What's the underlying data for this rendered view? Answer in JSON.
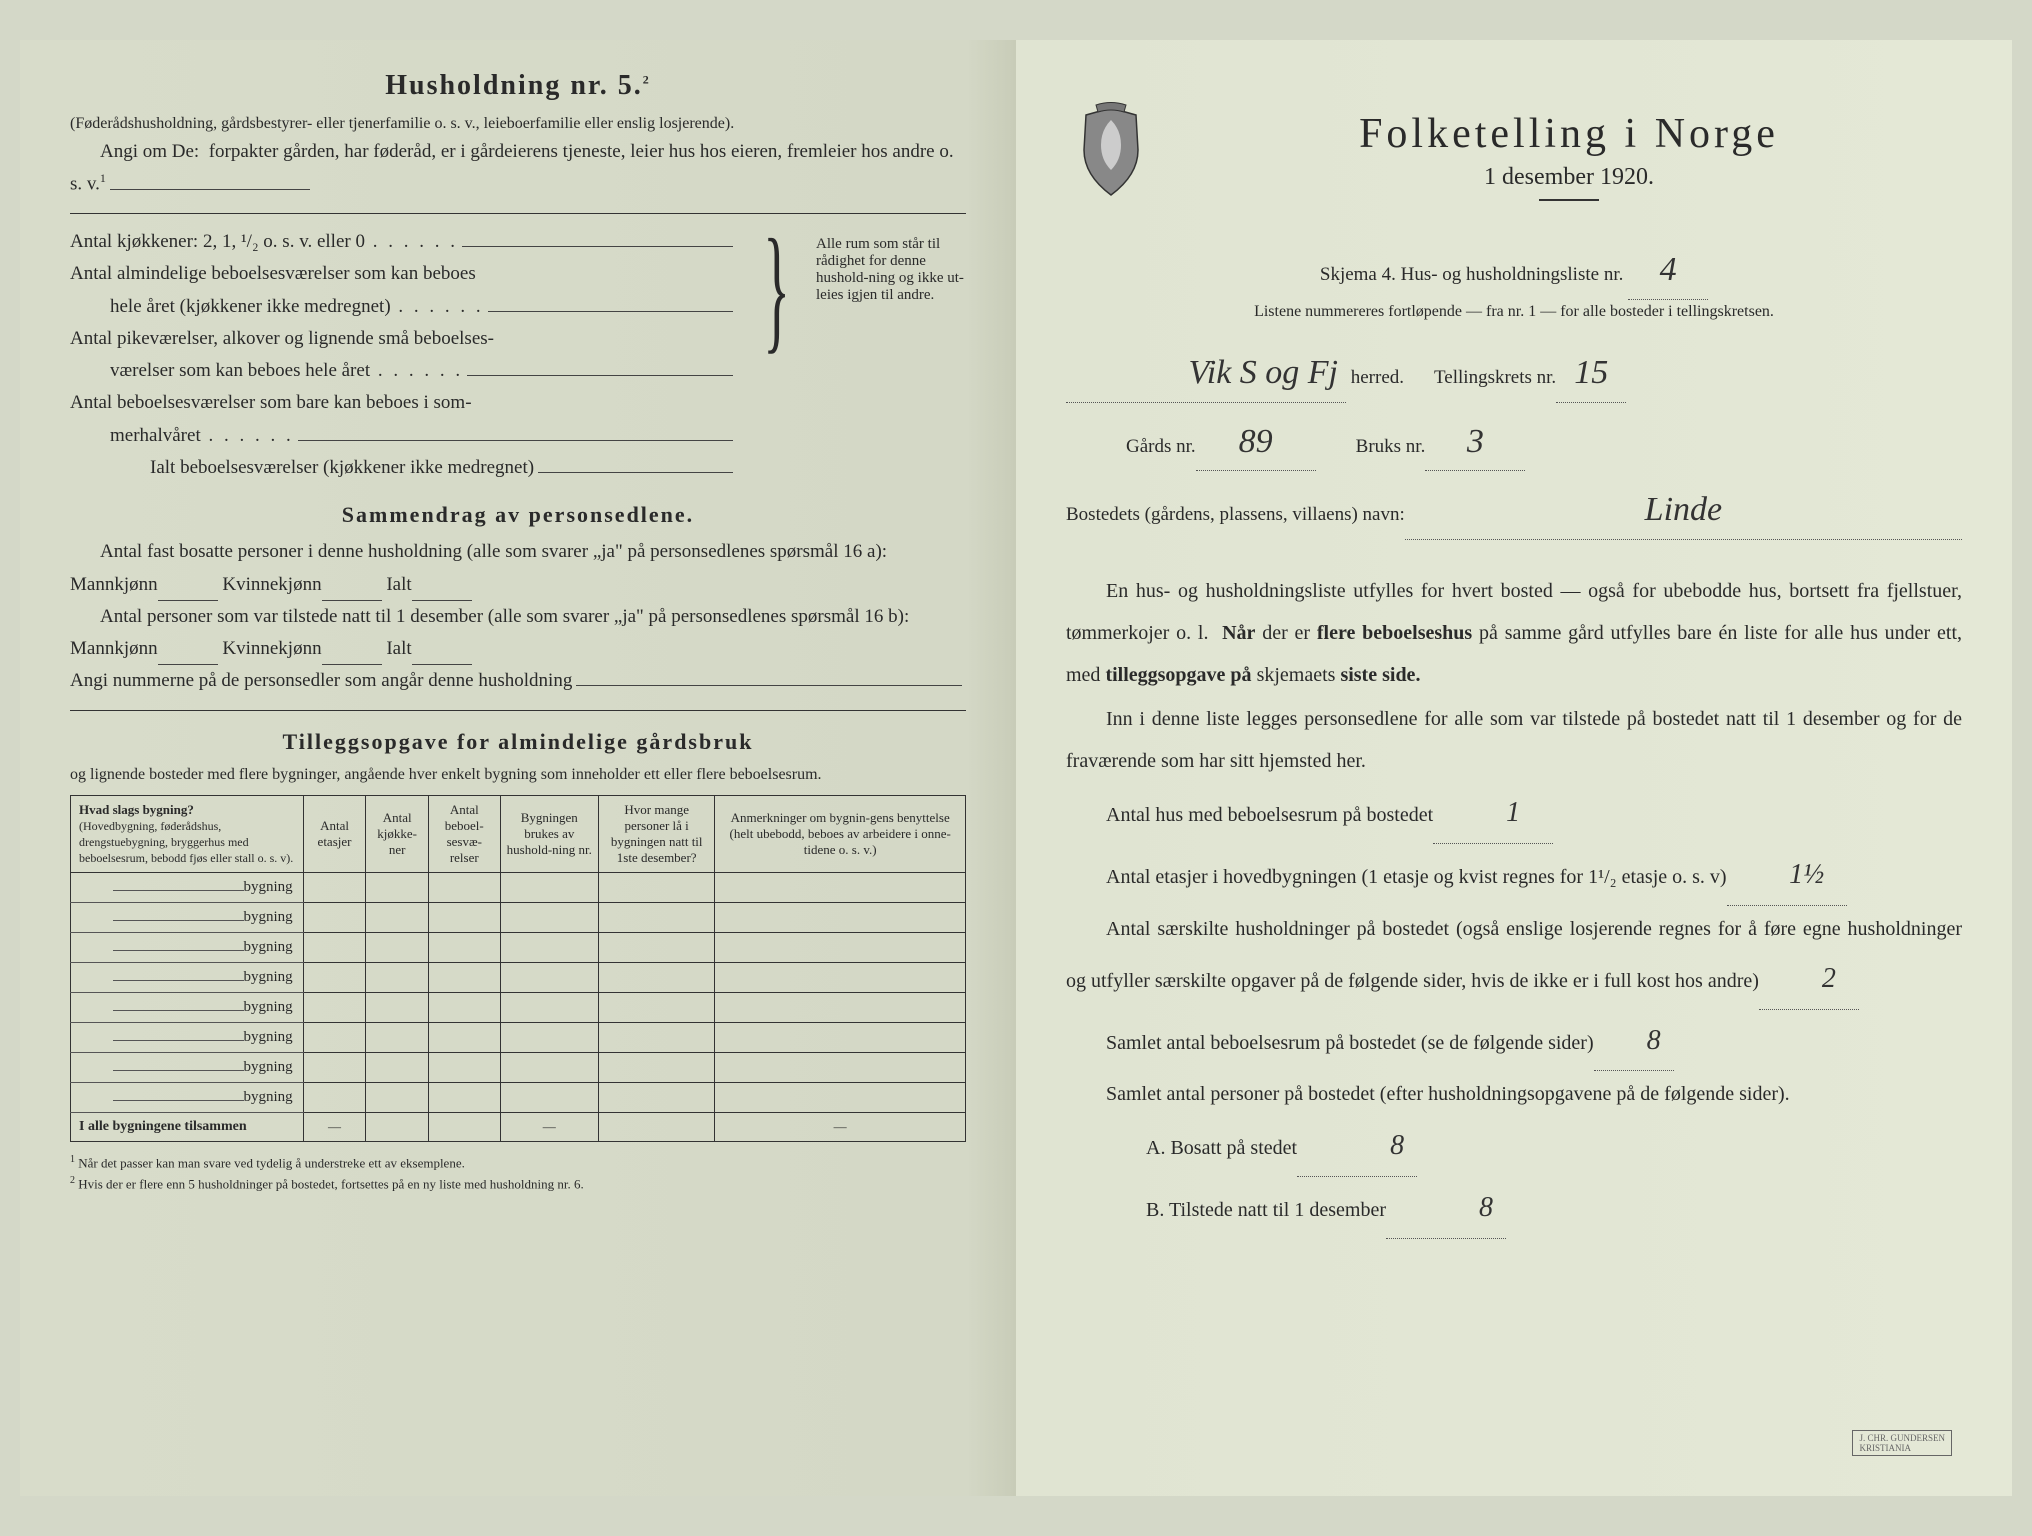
{
  "left": {
    "heading": "Husholdning nr. 5.",
    "heading_sup": "2",
    "para1": "(Føderådshusholdning, gårdsbestyrer- eller tjenerfamilie o. s. v., leieboerfamilie eller enslig losjerende).",
    "para2_lead": "Angi om De:",
    "para2_rest": "forpakter gården, har føderåd, er i gårdeierens tjeneste, leier hus hos eieren, fremleier hos andre o. s. v.",
    "para2_sup": "1",
    "kjokken": "Antal kjøkkener: 2, 1, ¹/₂ o. s. v. eller 0",
    "alm1": "Antal almindelige beboelsesværelser som kan beboes",
    "alm2_indent": "hele året (kjøkkener ikke medregnet)",
    "pike1": "Antal pikeværelser, alkover og lignende små beboelses-",
    "pike2_indent": "værelser som kan beboes hele året",
    "sommer1": "Antal beboelsesværelser som bare kan beboes i som-",
    "sommer2_indent": "merhalvåret",
    "ialt": "Ialt beboelsesværelser (kjøkkener ikke medregnet)",
    "brace_text": "Alle rum som står til rådighet for denne hushold-ning og ikke ut-leies igjen til andre.",
    "sammendrag_h": "Sammendrag av personsedlene.",
    "sam1": "Antal fast bosatte personer i denne husholdning (alle som svarer „ja\" på personsedlenes spørsmål 16 a): Mannkjønn",
    "kvinne": "Kvinnekjønn",
    "ialt_lbl": "Ialt",
    "sam2": "Antal personer som var tilstede natt til 1 desember (alle som svarer „ja\" på personsedlenes spørsmål 16 b): Mannkjønn",
    "sam3": "Angi nummerne på de personsedler som angår denne husholdning",
    "tillegg_h": "Tilleggsopgave for almindelige gårdsbruk",
    "tillegg_p": "og lignende bosteder med flere bygninger, angående hver enkelt bygning som inneholder ett eller flere beboelsesrum.",
    "th1_a": "Hvad slags bygning?",
    "th1_b": "(Hovedbygning, føderådshus, drengstuebygning, bryggerhus med beboelsesrum, bebodd fjøs eller stall o. s. v).",
    "th2": "Antal etasjer",
    "th3": "Antal kjøkke-ner",
    "th4": "Antal beboel-sesvæ-relser",
    "th5": "Bygningen brukes av hushold-ning nr.",
    "th6": "Hvor mange personer lå i bygningen natt til 1ste desember?",
    "th7": "Anmerkninger om bygnin-gens benyttelse (helt ubebodd, beboes av arbeidere i onne-tidene o. s. v.)",
    "bygning": "bygning",
    "total_row": "I alle bygningene tilsammen",
    "dash": "—",
    "fn1_sup": "1",
    "fn1": "Når det passer kan man svare ved tydelig å understreke ett av eksemplene.",
    "fn2_sup": "2",
    "fn2": "Hvis der er flere enn 5 husholdninger på bostedet, fortsettes på en ny liste med husholdning nr. 6."
  },
  "right": {
    "title": "Folketelling i Norge",
    "subtitle": "1 desember 1920.",
    "skjema": "Skjema 4.  Hus- og husholdningsliste nr.",
    "skjema_val": "4",
    "listene": "Listene nummereres fortløpende — fra nr. 1 — for alle bosteder i tellingskretsen.",
    "herred_val": "Vik S og Fj",
    "herred_lbl": "herred.",
    "tellingskrets_lbl": "Tellingskrets nr.",
    "tellingskrets_val": "15",
    "gards_lbl": "Gårds nr.",
    "gards_val": "89",
    "bruks_lbl": "Bruks nr.",
    "bruks_val": "3",
    "bosted_lbl": "Bostedets (gårdens, plassens, villaens) navn:",
    "bosted_val": "Linde",
    "p1": "En hus- og husholdningsliste utfylles for hvert bosted — også for ubebodde hus, bortsett fra fjellstuer, tømmerkojer o. l.  Når der er flere beboelseshus på samme gård utfylles bare én liste for alle hus under ett, med tilleggsopgave på skjemaets siste side.",
    "p2": "Inn i denne liste legges personsedlene for alle som var tilstede på bostedet natt til 1 desember og for de fraværende som har sitt hjemsted her.",
    "q1": "Antal hus med beboelsesrum på bostedet",
    "q1_val": "1",
    "q2a": "Antal etasjer i hovedbygningen (1 etasje og kvist regnes for 1¹/₂ etasje o. s. v)",
    "q2_val": "1½",
    "q3": "Antal særskilte husholdninger på bostedet (også enslige losjerende regnes for å føre egne husholdninger og utfyller særskilte opgaver på de følgende sider, hvis de ikke er i full kost hos andre)",
    "q3_val": "2",
    "q4": "Samlet antal beboelsesrum på bostedet (se de følgende sider)",
    "q4_val": "8",
    "q5": "Samlet antal personer på bostedet (efter husholdningsopgavene på de følgende sider).",
    "qA": "A.  Bosatt på stedet",
    "qA_val": "8",
    "qB": "B.  Tilstede natt til 1 desember",
    "qB_val": "8"
  },
  "colors": {
    "text": "#2a2a2a",
    "bg_left": "#d6dac8",
    "bg_right": "#e4e8d6",
    "line": "#444444"
  }
}
